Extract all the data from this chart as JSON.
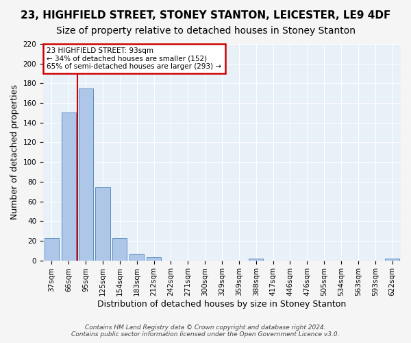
{
  "title": "23, HIGHFIELD STREET, STONEY STANTON, LEICESTER, LE9 4DF",
  "subtitle": "Size of property relative to detached houses in Stoney Stanton",
  "xlabel": "Distribution of detached houses by size in Stoney Stanton",
  "ylabel": "Number of detached properties",
  "bin_labels": [
    "37sqm",
    "66sqm",
    "95sqm",
    "125sqm",
    "154sqm",
    "183sqm",
    "212sqm",
    "242sqm",
    "271sqm",
    "300sqm",
    "329sqm",
    "359sqm",
    "388sqm",
    "417sqm",
    "446sqm",
    "476sqm",
    "505sqm",
    "534sqm",
    "563sqm",
    "593sqm",
    "622sqm"
  ],
  "bar_values": [
    23,
    150,
    175,
    74,
    23,
    7,
    3,
    0,
    0,
    0,
    0,
    0,
    2,
    0,
    0,
    0,
    0,
    0,
    0,
    0,
    2
  ],
  "bar_color": "#aec6e8",
  "bar_edge_color": "#5a8fc0",
  "annotation_text1": "23 HIGHFIELD STREET: 93sqm",
  "annotation_text2": "← 34% of detached houses are smaller (152)",
  "annotation_text3": "65% of semi-detached houses are larger (293) →",
  "annotation_box_edge": "#cc0000",
  "vline_color": "#cc0000",
  "vline_x": 1.5,
  "ylim": [
    0,
    220
  ],
  "yticks": [
    0,
    20,
    40,
    60,
    80,
    100,
    120,
    140,
    160,
    180,
    200,
    220
  ],
  "footer1": "Contains HM Land Registry data © Crown copyright and database right 2024.",
  "footer2": "Contains public sector information licensed under the Open Government Licence v3.0.",
  "plot_bg_color": "#e8f0f8",
  "fig_bg_color": "#f5f5f5",
  "title_fontsize": 11,
  "subtitle_fontsize": 10,
  "tick_fontsize": 7.5,
  "xlabel_fontsize": 9,
  "ylabel_fontsize": 9,
  "annotation_fontsize": 7.5,
  "footer_fontsize": 6.5
}
